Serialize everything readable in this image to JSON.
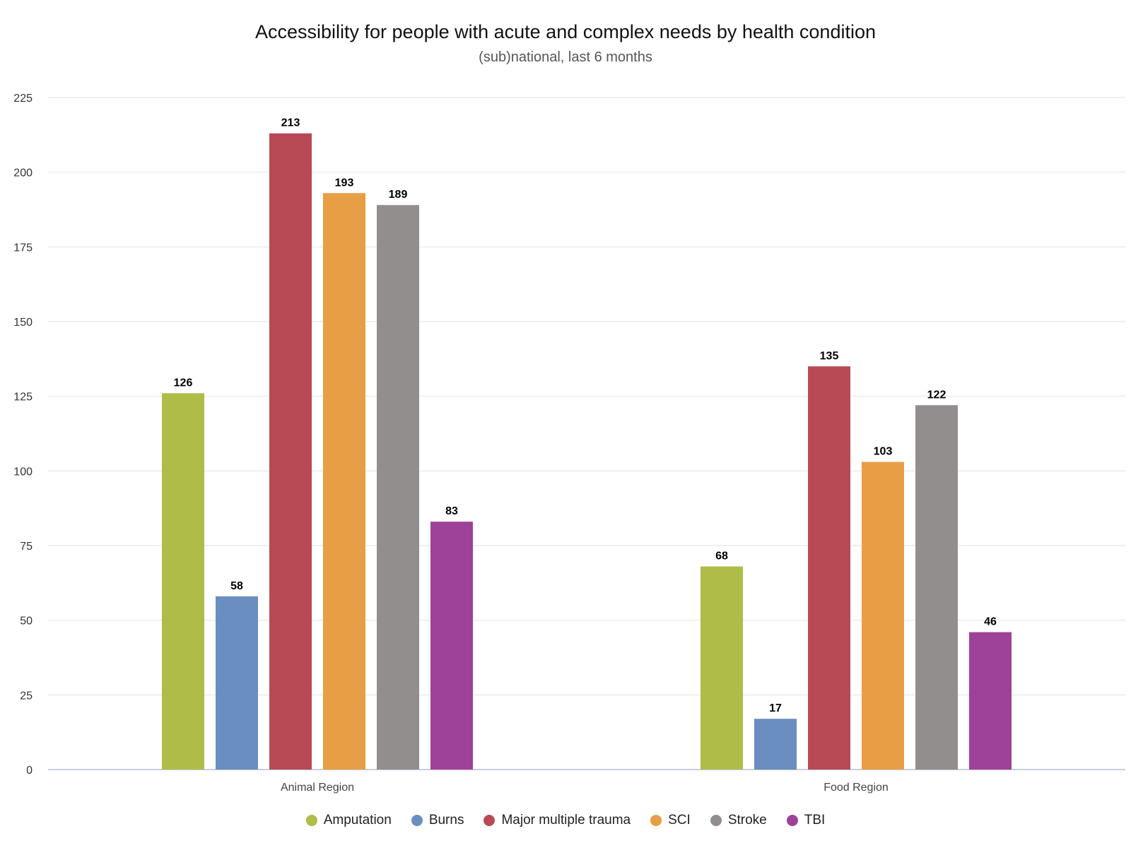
{
  "chart_data": {
    "type": "bar",
    "title": "Accessibility for people with acute and complex needs by health condition",
    "subtitle": "(sub)national, last 6 months",
    "categories": [
      "Animal Region",
      "Food Region"
    ],
    "series": [
      {
        "name": "Amputation",
        "color": "#afbc48",
        "values": [
          126,
          68
        ]
      },
      {
        "name": "Burns",
        "color": "#6a8ec0",
        "values": [
          58,
          17
        ]
      },
      {
        "name": "Major multiple trauma",
        "color": "#b84a55",
        "values": [
          213,
          135
        ]
      },
      {
        "name": "SCI",
        "color": "#e89e44",
        "values": [
          193,
          103
        ]
      },
      {
        "name": "Stroke",
        "color": "#928e8d",
        "values": [
          189,
          122
        ]
      },
      {
        "name": "TBI",
        "color": "#9e4198",
        "values": [
          83,
          46
        ]
      }
    ],
    "yticks": [
      0,
      25,
      50,
      75,
      100,
      125,
      150,
      175,
      200,
      225
    ],
    "ylim": [
      0,
      225
    ],
    "grid": true,
    "legend": "bottom-center",
    "data_labels": true
  }
}
